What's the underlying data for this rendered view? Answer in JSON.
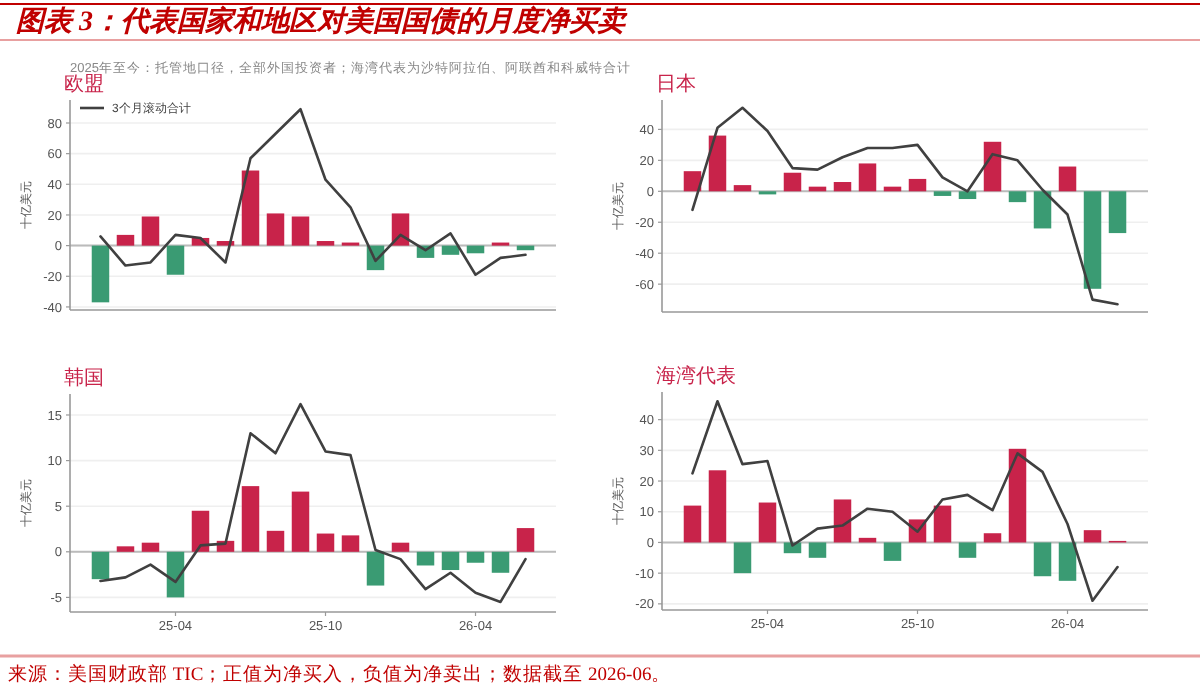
{
  "chart_data": [
    {
      "type": "bar",
      "title": "欧盟",
      "ylabel": "十亿美元",
      "annotations": [
        "图表 3：代表国家和地区对美国国债的月度净买卖",
        "2025年至今：托管地口径，全部外国投资者；海湾代表为沙特阿拉伯、阿联酋和科威特合计"
      ],
      "categories": [
        null,
        null,
        null,
        null,
        null,
        null,
        null,
        null,
        null,
        null,
        null,
        null,
        null,
        null,
        null,
        null,
        null,
        null
      ],
      "series": [
        {
          "values": [
            -37,
            7,
            19,
            -19,
            5,
            3,
            49,
            21,
            19,
            3,
            2,
            -16,
            21,
            -8,
            -6,
            -5,
            2,
            -3
          ],
          "colors": [
            "#3a9b73",
            "#c8234a",
            "#c8234a",
            "#3a9b73",
            "#c8234a",
            "#c8234a",
            "#c8234a",
            "#c8234a",
            "#c8234a",
            "#c8234a",
            "#c8234a",
            "#3a9b73",
            "#c8234a",
            "#3a9b73",
            "#3a9b73",
            "#3a9b73",
            "#c8234a",
            "#3a9b73"
          ]
        },
        {
          "type": "line",
          "name": "3个月滚动合计",
          "color": "#404040",
          "values": [
            6,
            -13,
            -11,
            7,
            5,
            -11,
            57,
            73,
            89,
            43,
            25,
            -10,
            7,
            -3,
            8,
            -19,
            -8,
            -6
          ]
        }
      ],
      "ylim": [
        -42,
        95
      ],
      "yticks": [
        -40,
        -20,
        0,
        20,
        40,
        60,
        80
      ],
      "grid": "y",
      "legend": "top left",
      "tick_labels": "y",
      "ref_lines": [
        {
          "axis": "y",
          "value": 0,
          "color": "#bbbbbb"
        }
      ]
    },
    {
      "type": "bar",
      "title": "日本",
      "ylabel": "十亿美元",
      "categories": [
        null,
        null,
        null,
        null,
        null,
        null,
        null,
        null,
        null,
        null,
        null,
        null,
        null,
        null,
        null,
        null,
        null,
        null
      ],
      "series": [
        {
          "values": [
            13,
            36,
            4,
            -2,
            12,
            3,
            6,
            18,
            3,
            8,
            -3,
            -5,
            32,
            -7,
            -24,
            16,
            -63,
            -27
          ],
          "colors": [
            "#c8234a",
            "#c8234a",
            "#c8234a",
            "#3a9b73",
            "#c8234a",
            "#c8234a",
            "#c8234a",
            "#c8234a",
            "#c8234a",
            "#c8234a",
            "#3a9b73",
            "#3a9b73",
            "#c8234a",
            "#3a9b73",
            "#3a9b73",
            "#c8234a",
            "#3a9b73",
            "#3a9b73"
          ]
        },
        {
          "type": "line",
          "color": "#404040",
          "values": [
            -12,
            41,
            54,
            39,
            15,
            14,
            22,
            28,
            28,
            30,
            9,
            0,
            24,
            20,
            1,
            -15,
            -70,
            -73
          ]
        }
      ],
      "ylim": [
        -78,
        59
      ],
      "yticks": [
        -60,
        -40,
        -20,
        0,
        20,
        40
      ],
      "grid": "y",
      "tick_labels": "y",
      "ref_lines": [
        {
          "axis": "y",
          "value": 0,
          "color": "#bbbbbb"
        }
      ]
    },
    {
      "type": "bar",
      "title": "韩国",
      "ylabel": "十亿美元",
      "categories": [
        null,
        null,
        null,
        "25-04",
        null,
        null,
        null,
        null,
        null,
        "25-10",
        null,
        null,
        null,
        null,
        null,
        "26-04",
        null,
        null
      ],
      "series": [
        {
          "values": [
            -3,
            0.6,
            1,
            -5,
            4.5,
            1.2,
            7.2,
            2.3,
            6.6,
            2,
            1.8,
            -3.7,
            1,
            -1.5,
            -2,
            -1.2,
            -2.3,
            2.6
          ],
          "colors": [
            "#3a9b73",
            "#c8234a",
            "#c8234a",
            "#3a9b73",
            "#c8234a",
            "#c8234a",
            "#c8234a",
            "#c8234a",
            "#c8234a",
            "#c8234a",
            "#c8234a",
            "#3a9b73",
            "#c8234a",
            "#3a9b73",
            "#3a9b73",
            "#3a9b73",
            "#3a9b73",
            "#c8234a"
          ]
        },
        {
          "type": "line",
          "color": "#404040",
          "values": [
            -3.2,
            -2.8,
            -1.4,
            -3.3,
            0.7,
            0.9,
            13,
            10.8,
            16.2,
            11,
            10.6,
            0.2,
            -0.8,
            -4.1,
            -2.3,
            -4.5,
            -5.5,
            -0.8
          ]
        }
      ],
      "ylim": [
        -6.6,
        17.3
      ],
      "yticks": [
        -5,
        0,
        5,
        10,
        15
      ],
      "grid": "y",
      "ref_lines": [
        {
          "axis": "y",
          "value": 0,
          "color": "#bbbbbb"
        }
      ]
    },
    {
      "type": "bar",
      "title": "海湾代表",
      "ylabel": "十亿美元",
      "annotations": [
        "来源：美国财政部 TIC；正值为净买入，负值为净卖出；数据截至 2026-06。"
      ],
      "categories": [
        null,
        null,
        null,
        "25-04",
        null,
        null,
        null,
        null,
        null,
        "25-10",
        null,
        null,
        null,
        null,
        null,
        "26-04",
        null,
        null
      ],
      "series": [
        {
          "values": [
            12,
            23.5,
            -10,
            13,
            -3.5,
            -5,
            14,
            1.5,
            -6,
            7.5,
            12,
            -5,
            3,
            30.5,
            -11,
            -12.5,
            4,
            0.5
          ],
          "colors": [
            "#c8234a",
            "#c8234a",
            "#3a9b73",
            "#c8234a",
            "#3a9b73",
            "#3a9b73",
            "#c8234a",
            "#c8234a",
            "#3a9b73",
            "#c8234a",
            "#c8234a",
            "#3a9b73",
            "#c8234a",
            "#c8234a",
            "#3a9b73",
            "#3a9b73",
            "#c8234a",
            "#c8234a"
          ]
        },
        {
          "type": "line",
          "color": "#404040",
          "values": [
            22.5,
            46,
            25.5,
            26.5,
            -1,
            4.5,
            5.5,
            11,
            10,
            3.5,
            14,
            15.5,
            10.5,
            29,
            23,
            6,
            -19,
            -8
          ]
        }
      ],
      "ylim": [
        -22,
        49
      ],
      "yticks": [
        -20,
        -10,
        0,
        10,
        20,
        30,
        40
      ],
      "grid": "y",
      "ref_lines": [
        {
          "axis": "y",
          "value": 0,
          "color": "#bbbbbb"
        }
      ]
    }
  ]
}
